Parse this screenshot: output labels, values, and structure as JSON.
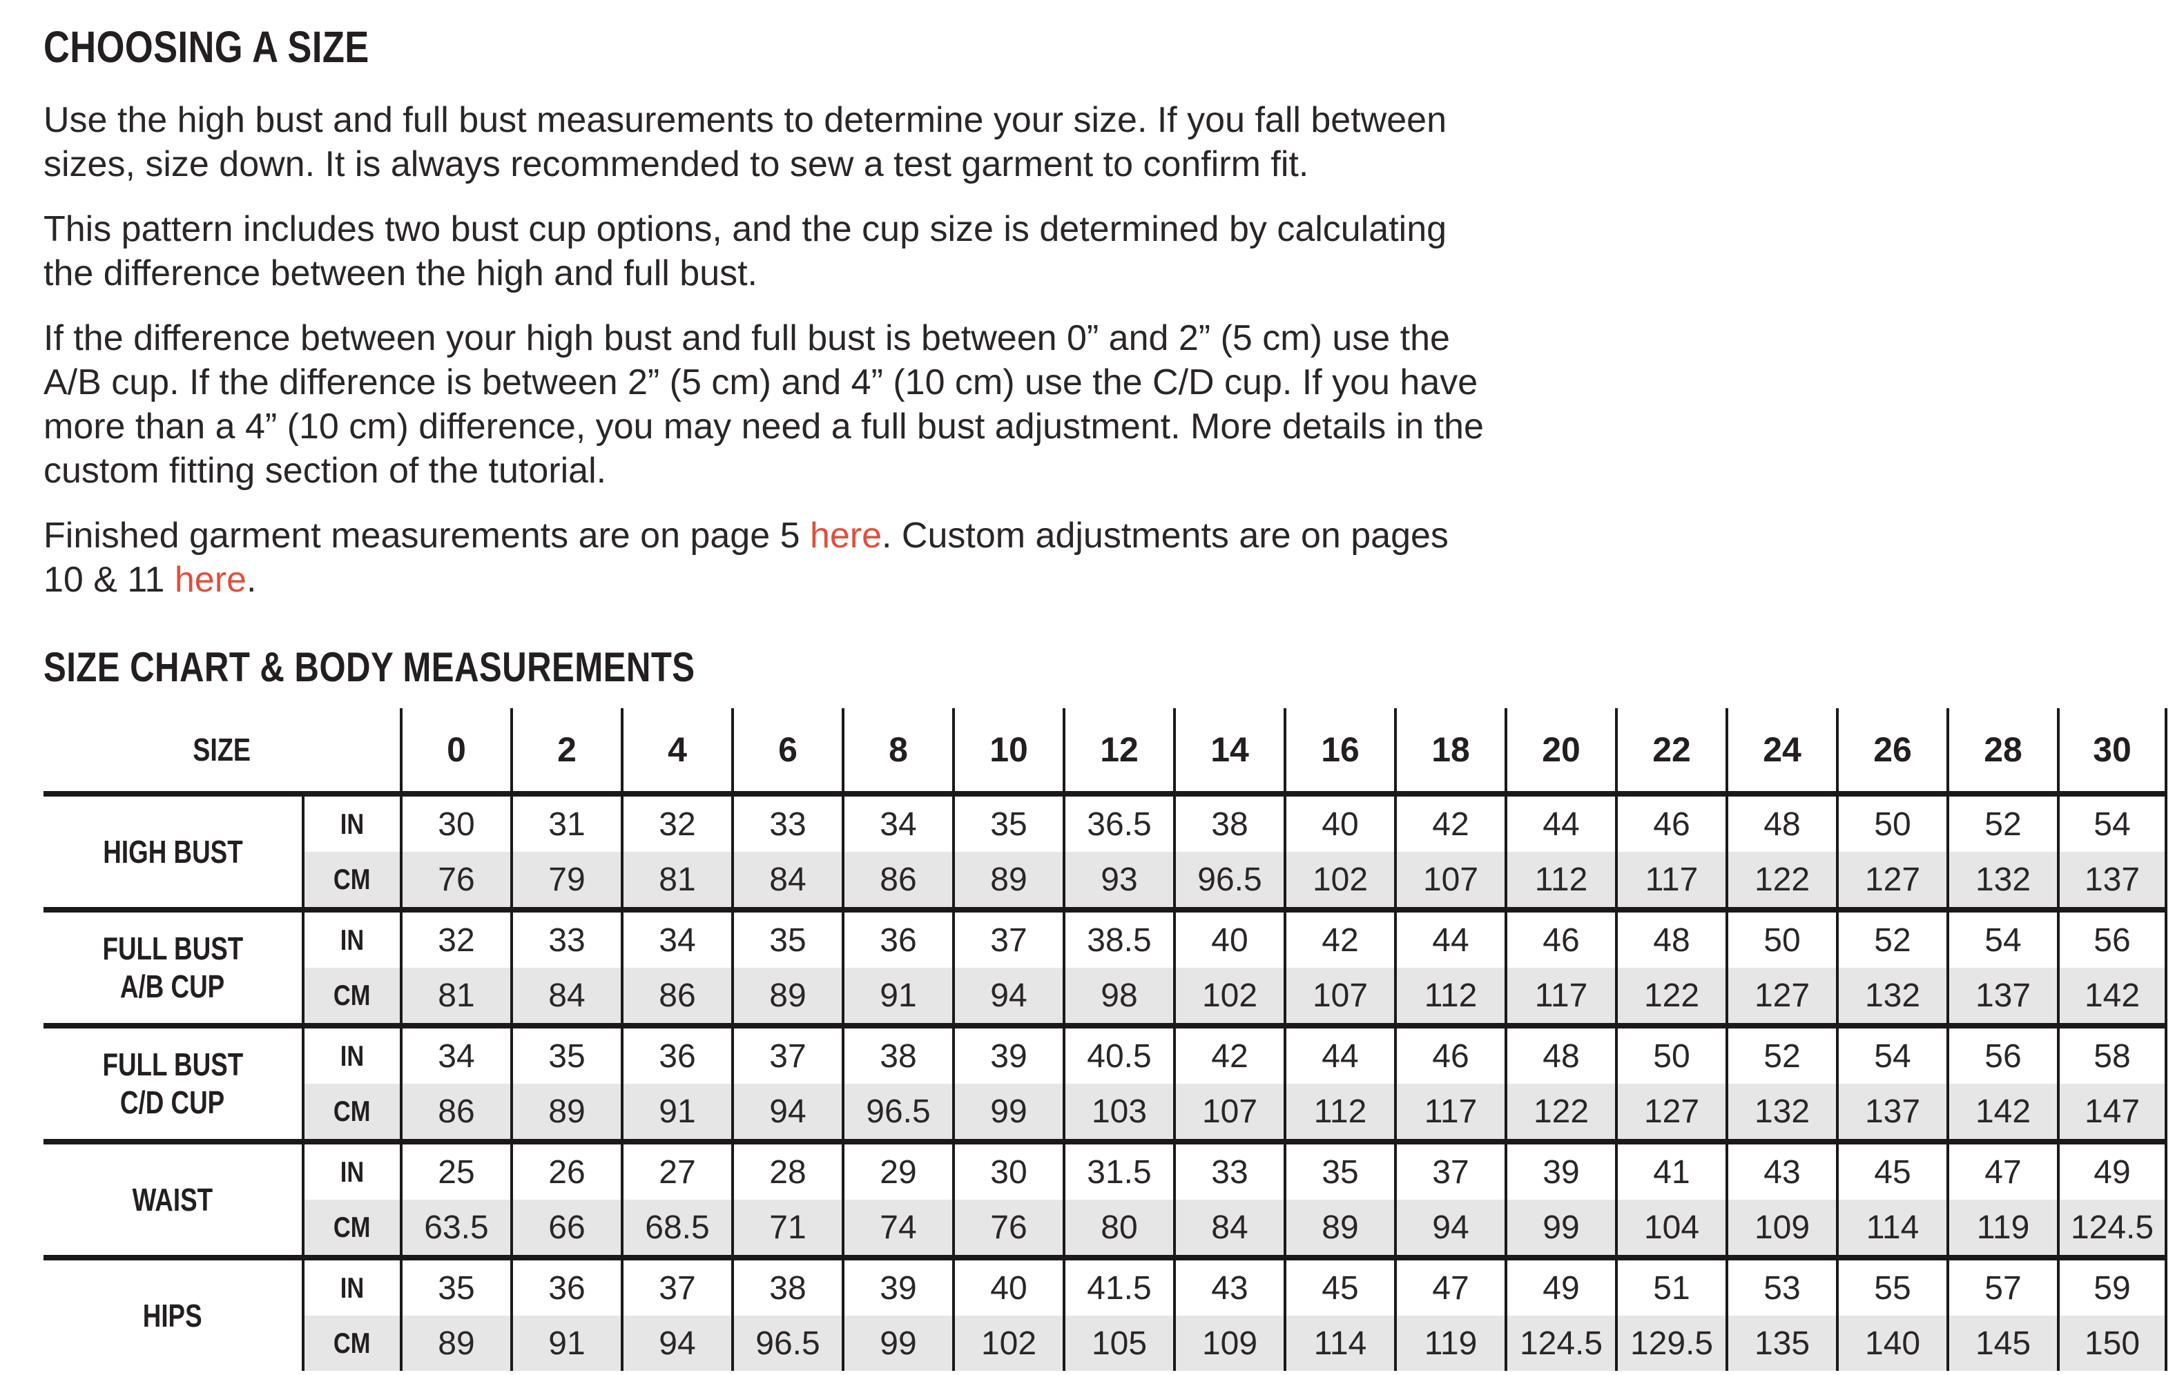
{
  "colors": {
    "text": "#231f20",
    "link_red": "#e14f3b",
    "row_shade": "#e6e6e6",
    "table_line": "#1b191a"
  },
  "intro": {
    "title": "CHOOSING A SIZE",
    "p1": "Use the high bust and full bust measurements to determine your size. If you fall between\nsizes, size down. It is always recommended to sew a test garment to confirm fit.",
    "p2": "This pattern includes two bust cup options, and the cup size is determined by calculating\nthe difference between the high and full bust.",
    "p3": "If the difference between your high bust and full bust is between 0” and 2” (5 cm) use the\nA/B cup. If the difference is between 2” (5 cm) and 4” (10 cm) use the C/D cup. If you have\nmore than a 4” (10 cm) difference, you may need a full bust adjustment. More details in the\ncustom fitting section of the tutorial.",
    "p4": {
      "t1": "Finished garment measurements are on page 5 ",
      "link1": "here",
      "t2": ". Custom adjustments are on pages",
      "t3": "10 & 11 ",
      "link2": "here",
      "t4": "."
    }
  },
  "chart": {
    "title": "SIZE CHART & BODY MEASUREMENTS",
    "corner_label": "SIZE",
    "unit_labels": {
      "in": "IN",
      "cm": "CM"
    },
    "sizes": [
      "0",
      "2",
      "4",
      "6",
      "8",
      "10",
      "12",
      "14",
      "16",
      "18",
      "20",
      "22",
      "24",
      "26",
      "28",
      "30"
    ],
    "rows": [
      {
        "label_lines": [
          "HIGH BUST"
        ],
        "in": [
          "30",
          "31",
          "32",
          "33",
          "34",
          "35",
          "36.5",
          "38",
          "40",
          "42",
          "44",
          "46",
          "48",
          "50",
          "52",
          "54"
        ],
        "cm": [
          "76",
          "79",
          "81",
          "84",
          "86",
          "89",
          "93",
          "96.5",
          "102",
          "107",
          "112",
          "117",
          "122",
          "127",
          "132",
          "137"
        ]
      },
      {
        "label_lines": [
          "FULL BUST",
          "A/B CUP"
        ],
        "in": [
          "32",
          "33",
          "34",
          "35",
          "36",
          "37",
          "38.5",
          "40",
          "42",
          "44",
          "46",
          "48",
          "50",
          "52",
          "54",
          "56"
        ],
        "cm": [
          "81",
          "84",
          "86",
          "89",
          "91",
          "94",
          "98",
          "102",
          "107",
          "112",
          "117",
          "122",
          "127",
          "132",
          "137",
          "142"
        ]
      },
      {
        "label_lines": [
          "FULL BUST",
          "C/D CUP"
        ],
        "in": [
          "34",
          "35",
          "36",
          "37",
          "38",
          "39",
          "40.5",
          "42",
          "44",
          "46",
          "48",
          "50",
          "52",
          "54",
          "56",
          "58"
        ],
        "cm": [
          "86",
          "89",
          "91",
          "94",
          "96.5",
          "99",
          "103",
          "107",
          "112",
          "117",
          "122",
          "127",
          "132",
          "137",
          "142",
          "147"
        ]
      },
      {
        "label_lines": [
          "WAIST"
        ],
        "in": [
          "25",
          "26",
          "27",
          "28",
          "29",
          "30",
          "31.5",
          "33",
          "35",
          "37",
          "39",
          "41",
          "43",
          "45",
          "47",
          "49"
        ],
        "cm": [
          "63.5",
          "66",
          "68.5",
          "71",
          "74",
          "76",
          "80",
          "84",
          "89",
          "94",
          "99",
          "104",
          "109",
          "114",
          "119",
          "124.5"
        ]
      },
      {
        "label_lines": [
          "HIPS"
        ],
        "in": [
          "35",
          "36",
          "37",
          "38",
          "39",
          "40",
          "41.5",
          "43",
          "45",
          "47",
          "49",
          "51",
          "53",
          "55",
          "57",
          "59"
        ],
        "cm": [
          "89",
          "91",
          "94",
          "96.5",
          "99",
          "102",
          "105",
          "109",
          "114",
          "119",
          "124.5",
          "129.5",
          "135",
          "140",
          "145",
          "150"
        ]
      }
    ]
  }
}
